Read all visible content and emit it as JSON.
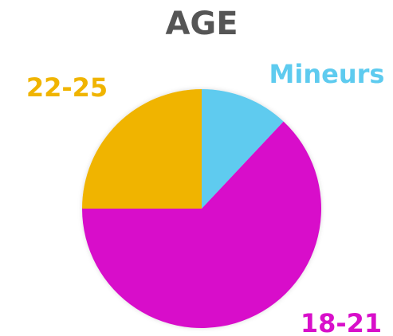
{
  "chart_data": {
    "type": "pie",
    "title": "AGE",
    "categories": [
      "Mineurs",
      "18-21",
      "22-25"
    ],
    "values": [
      12,
      63,
      25
    ],
    "colors": [
      "#5ecbef",
      "#d80fca",
      "#f0b400"
    ]
  }
}
